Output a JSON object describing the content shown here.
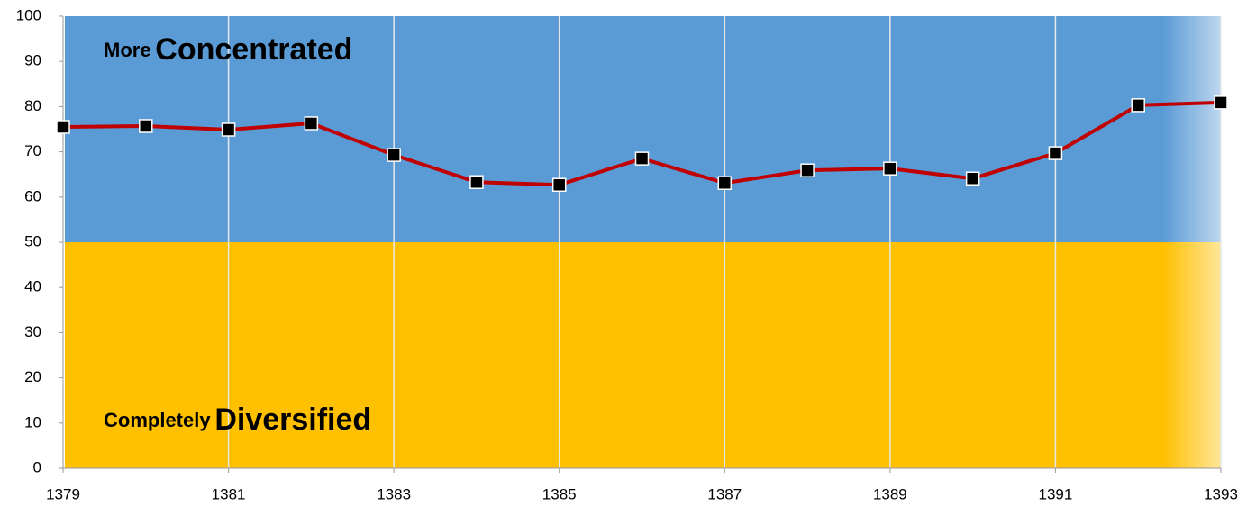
{
  "chart_data": {
    "type": "line",
    "x": [
      1379,
      1380,
      1381,
      1382,
      1383,
      1384,
      1385,
      1386,
      1387,
      1388,
      1389,
      1390,
      1391,
      1392,
      1393
    ],
    "series": [
      {
        "color": "#c00000",
        "marker_color": "#000000",
        "values": [
          75.5,
          75.7,
          74.9,
          76.3,
          69.3,
          63.3,
          62.7,
          68.5,
          63.1,
          65.9,
          66.3,
          64.1,
          69.7,
          80.3,
          80.9
        ]
      }
    ],
    "xlim": [
      1379,
      1393
    ],
    "xticks": [
      1379,
      1381,
      1383,
      1385,
      1387,
      1389,
      1391,
      1393
    ],
    "ylim": [
      0,
      100
    ],
    "yticks": [
      0,
      10,
      20,
      30,
      40,
      50,
      60,
      70,
      80,
      90,
      100
    ],
    "grid": "x",
    "bands": [
      {
        "from": 50,
        "to": 100,
        "color": "#5b9bd5"
      },
      {
        "from": 0,
        "to": 50,
        "color": "#ffc000"
      }
    ],
    "annotations": [
      [
        "More",
        "Concentrated"
      ],
      [
        "Completely",
        "Diversified"
      ]
    ]
  }
}
